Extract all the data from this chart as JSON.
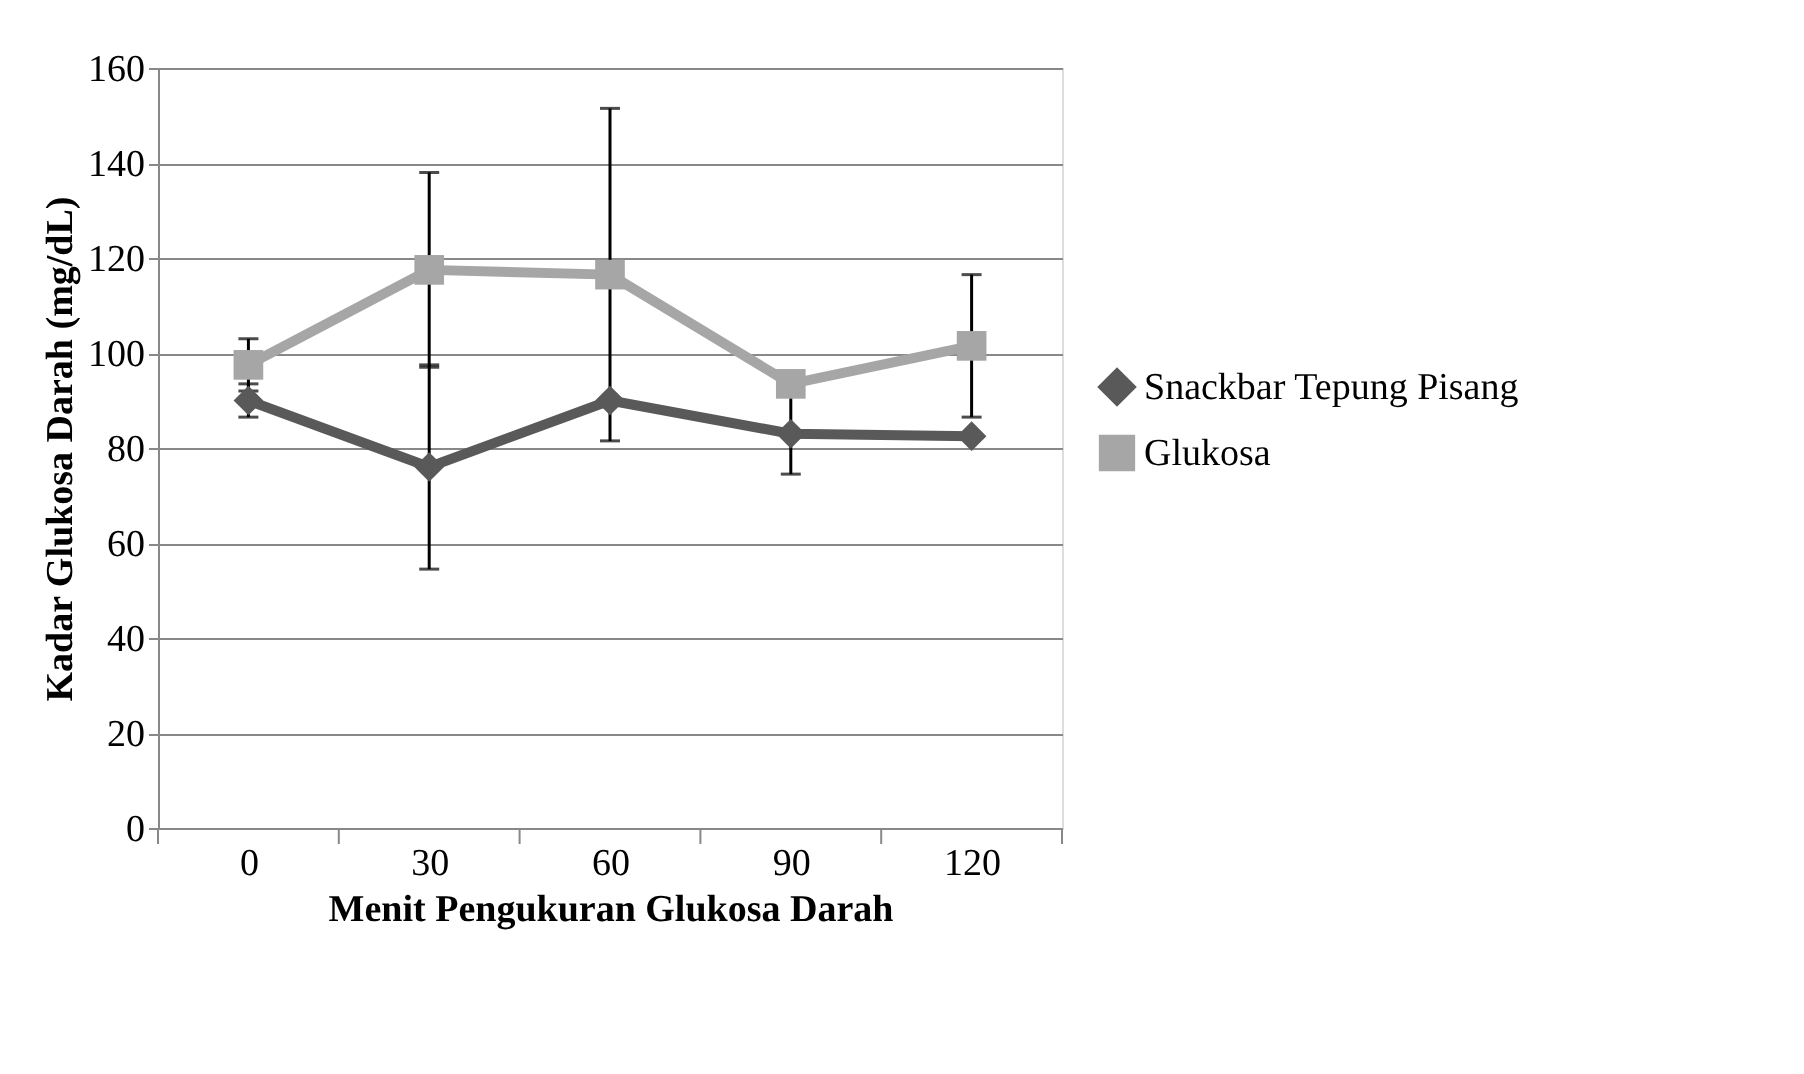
{
  "chart_data": {
    "type": "line",
    "xlabel": "Menit Pengukuran Glukosa Darah",
    "ylabel": "Kadar Glukosa Darah (mg/dL)",
    "categories": [
      "0",
      "30",
      "60",
      "90",
      "120"
    ],
    "series": [
      {
        "name": "Snackbar Tepung Pisang",
        "color": "#595959",
        "marker": "diamond",
        "values": [
          90,
          76,
          90,
          83,
          82.5
        ],
        "errors": [
          3.5,
          21.5,
          null,
          8.5,
          null
        ]
      },
      {
        "name": "Glukosa",
        "color": "#a6a6a6",
        "marker": "square",
        "values": [
          97.5,
          117.5,
          116.5,
          93.5,
          101.5
        ],
        "errors": [
          5.5,
          20.5,
          35,
          null,
          15
        ]
      }
    ],
    "ylim": [
      0,
      160
    ],
    "yticks": [
      0,
      20,
      40,
      60,
      80,
      100,
      120,
      140,
      160
    ],
    "grid": "y",
    "legend": "right",
    "line_style": "solid"
  }
}
